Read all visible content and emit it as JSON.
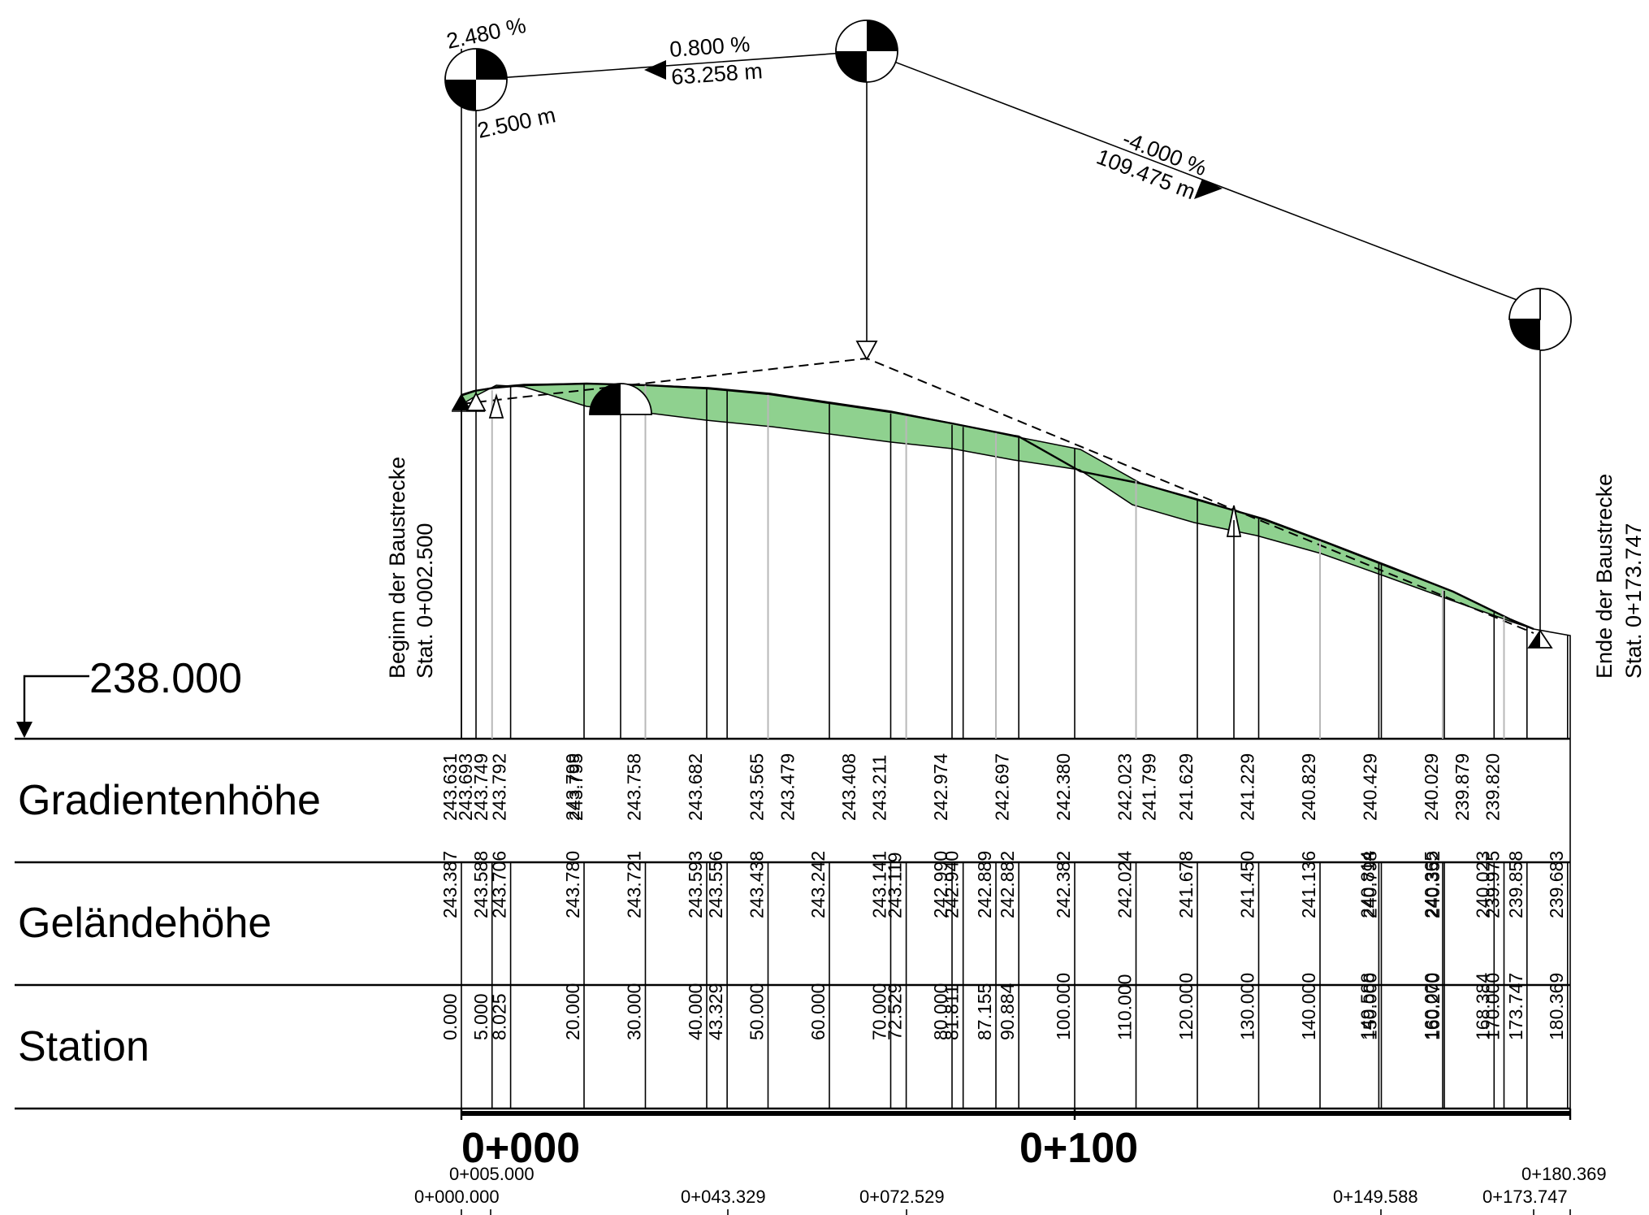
{
  "datum": {
    "label": "238.000"
  },
  "bands": {
    "gradient_label": "Gradientenhöhe",
    "terrain_label": "Geländehöhe",
    "station_label": "Station"
  },
  "annotations": {
    "start_line1": "Beginn der Baustrecke",
    "start_line2": "Stat. 0+002.500",
    "end_line1": "Ende der Baustrecke",
    "end_line2": "Stat. 0+173.747",
    "pvi1_grade": "2.480 %",
    "pvi1_length": "2.500 m",
    "seg1_grade": "0.800 %",
    "seg1_length": "63.258 m",
    "seg2_grade": "-4.000 %",
    "seg2_length": "109.475 m"
  },
  "scale": {
    "major_labels": [
      "0+000",
      "0+100"
    ],
    "key_stations": [
      "0+005.000",
      "0+000.000",
      "0+043.329",
      "0+072.529",
      "0+149.588",
      "0+173.747",
      "0+180.369"
    ]
  },
  "gradient_values": [
    "243.631",
    "243.693",
    "243.749",
    "243.792",
    "243.799",
    "243.795",
    "243.758",
    "243.682",
    "243.565",
    "243.479",
    "243.408",
    "243.211",
    "242.974",
    "242.697",
    "242.380",
    "242.023",
    "241.799",
    "241.629",
    "241.229",
    "240.829",
    "240.429",
    "240.029",
    "239.879",
    "239.820"
  ],
  "terrain_values": [
    "243.387",
    "243.588",
    "243.706",
    "243.780",
    "243.721",
    "243.593",
    "243.556",
    "243.438",
    "243.242",
    "243.141",
    "243.119",
    "242.990",
    "242.940",
    "242.889",
    "242.882",
    "242.382",
    "242.024",
    "241.678",
    "241.450",
    "241.136",
    "240.814",
    "240.798",
    "240.365",
    "240.352",
    "240.023",
    "239.975",
    "239.858",
    "239.683"
  ],
  "station_values": [
    "0.000",
    "5.000",
    "8.025",
    "20.000",
    "30.000",
    "40.000",
    "43.329",
    "50.000",
    "60.000",
    "70.000",
    "72.529",
    "80.000",
    "81.811",
    "87.155",
    "90.884",
    "100.000",
    "110.000",
    "120.000",
    "130.000",
    "140.000",
    "149.588",
    "150.000",
    "160.000",
    "160.270",
    "168.384",
    "170.000",
    "173.747",
    "180.369"
  ],
  "colors": {
    "cut_fill": "#8fd18f",
    "line": "#000000",
    "grey_line": "#b8b8b8"
  }
}
